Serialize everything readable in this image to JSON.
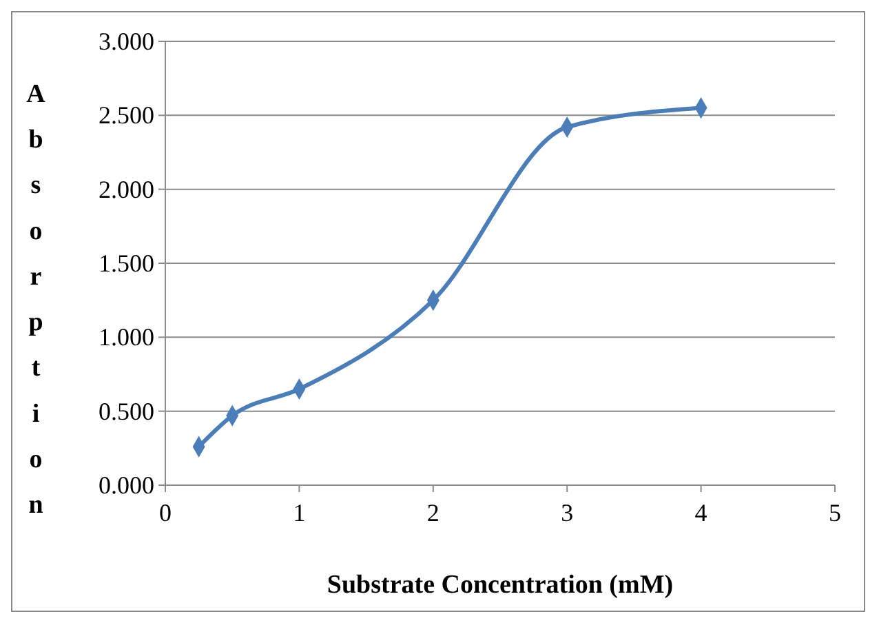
{
  "chart_data": {
    "type": "line",
    "xlabel": "Substrate Concentration (mM)",
    "ylabel": "Absorption",
    "x": [
      0.25,
      0.5,
      1,
      2,
      3,
      4
    ],
    "series": [
      {
        "color": "#4a7ebb",
        "values": [
          0.26,
          0.47,
          0.65,
          1.25,
          2.42,
          2.55
        ]
      }
    ],
    "xlim": [
      0,
      5
    ],
    "xticks": [
      0,
      1,
      2,
      3,
      4,
      5
    ],
    "ylim": [
      0,
      3
    ],
    "yticks": [
      {
        "value": 0,
        "label": "0.000"
      },
      {
        "value": 0.5,
        "label": "0.500"
      },
      {
        "value": 1,
        "label": "1.000"
      },
      {
        "value": 1.5,
        "label": "1.500"
      },
      {
        "value": 2,
        "label": "2.000"
      },
      {
        "value": 2.5,
        "label": "2.500"
      },
      {
        "value": 3,
        "label": "3.000"
      }
    ],
    "grid": "y",
    "marker": "diamond",
    "line_style": "solid"
  }
}
